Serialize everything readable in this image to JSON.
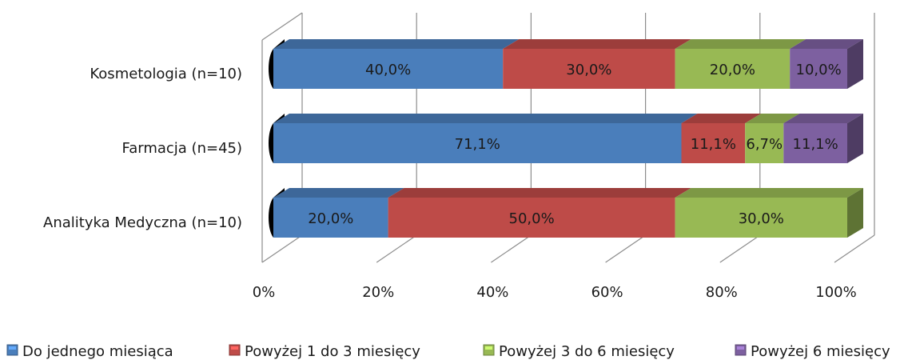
{
  "chart_data": {
    "type": "bar",
    "orientation": "horizontal",
    "stacked": "percent",
    "categories": [
      "Kosmetologia (n=10)",
      "Farmacja (n=45)",
      "Analityka Medyczna (n=10)"
    ],
    "series": [
      {
        "name": "Do jednego miesiąca",
        "color": "#4a7ebb",
        "values": [
          40.0,
          71.1,
          20.0
        ],
        "labels": [
          "40,0%",
          "71,1%",
          "20,0%"
        ]
      },
      {
        "name": "Powyżej 1 do 3 miesięcy",
        "color": "#be4b48",
        "values": [
          30.0,
          11.1,
          50.0
        ],
        "labels": [
          "30,0%",
          "11,1%",
          "50,0%"
        ]
      },
      {
        "name": "Powyżej 3 do 6 miesięcy",
        "color": "#98b954",
        "values": [
          20.0,
          6.7,
          30.0
        ],
        "labels": [
          "20,0%",
          "6,7%",
          "30,0%"
        ]
      },
      {
        "name": "Powyżej 6 miesięcy",
        "color": "#7d60a0",
        "values": [
          10.0,
          11.1,
          0.0
        ],
        "labels": [
          "10,0%",
          "11,1%",
          ""
        ]
      }
    ],
    "xticks": [
      "0%",
      "20%",
      "40%",
      "60%",
      "80%",
      "100%"
    ],
    "xlim": [
      0,
      100
    ],
    "grid": true,
    "legend_position": "bottom"
  }
}
